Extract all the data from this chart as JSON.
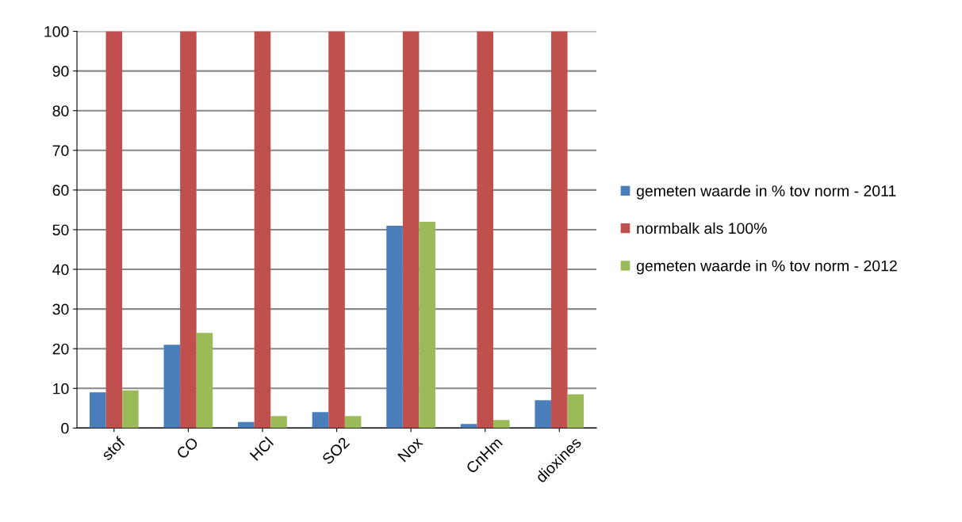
{
  "chart_data": {
    "type": "bar",
    "categories": [
      "stof",
      "CO",
      "HCl",
      "SO2",
      "Nox",
      "CnHm",
      "dioxines"
    ],
    "series": [
      {
        "name": "gemeten waarde in % tov norm - 2011",
        "color": "#4a7ebb",
        "values": [
          9,
          21,
          1.5,
          4,
          51,
          1,
          7
        ]
      },
      {
        "name": "normbalk als 100%",
        "color": "#c0504d",
        "values": [
          100,
          100,
          100,
          100,
          100,
          100,
          100
        ]
      },
      {
        "name": "gemeten waarde in % tov norm - 2012",
        "color": "#9bbb59",
        "values": [
          9.5,
          24,
          3,
          3,
          52,
          2,
          8.5
        ]
      }
    ],
    "ylim": [
      0,
      100
    ],
    "yticks": [
      0,
      10,
      20,
      30,
      40,
      50,
      60,
      70,
      80,
      90,
      100
    ],
    "grid": "y",
    "legend": "right"
  }
}
